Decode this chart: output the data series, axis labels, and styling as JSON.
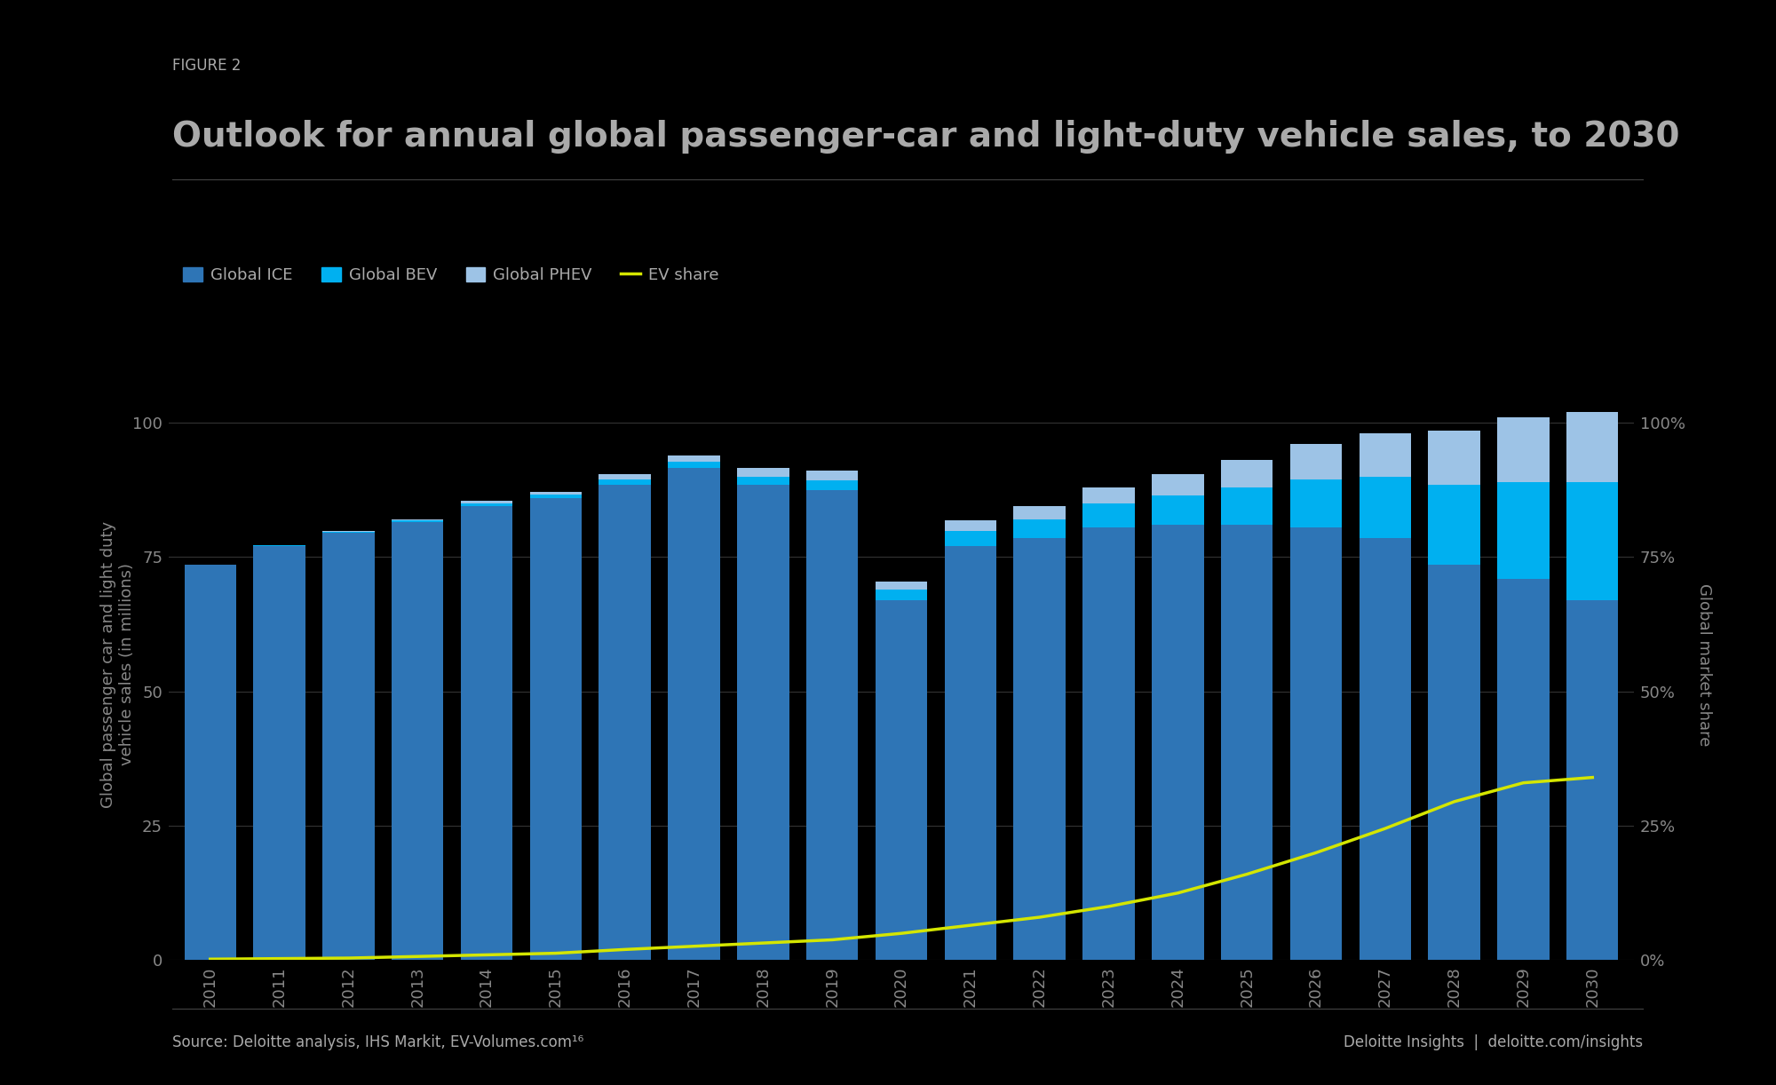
{
  "years": [
    2010,
    2011,
    2012,
    2013,
    2014,
    2015,
    2016,
    2017,
    2018,
    2019,
    2020,
    2021,
    2022,
    2023,
    2024,
    2025,
    2026,
    2027,
    2028,
    2029,
    2030
  ],
  "ice": [
    73.5,
    77.0,
    79.5,
    81.5,
    84.5,
    86.0,
    88.5,
    91.5,
    88.5,
    87.5,
    67.0,
    77.0,
    78.5,
    80.5,
    81.0,
    81.0,
    80.5,
    78.5,
    73.5,
    71.0,
    67.0
  ],
  "bev": [
    0.1,
    0.15,
    0.2,
    0.3,
    0.5,
    0.6,
    1.0,
    1.2,
    1.5,
    1.8,
    2.0,
    2.8,
    3.5,
    4.5,
    5.5,
    7.0,
    9.0,
    11.5,
    15.0,
    18.0,
    22.0
  ],
  "phev": [
    0.05,
    0.1,
    0.15,
    0.25,
    0.4,
    0.6,
    0.9,
    1.2,
    1.5,
    1.8,
    1.5,
    2.0,
    2.5,
    3.0,
    4.0,
    5.0,
    6.5,
    8.0,
    10.0,
    12.0,
    13.0
  ],
  "ev_share": [
    0.2,
    0.3,
    0.4,
    0.7,
    1.0,
    1.3,
    2.0,
    2.6,
    3.2,
    3.8,
    5.0,
    6.5,
    8.0,
    10.0,
    12.5,
    16.0,
    20.0,
    24.5,
    29.5,
    33.0,
    34.0
  ],
  "color_ice": "#2e75b6",
  "color_bev": "#00b0f0",
  "color_phev": "#9dc3e6",
  "color_ev_share": "#d4e600",
  "axes_facecolor": "#000000",
  "figure_facecolor": "#000000",
  "figure_label": "FIGURE 2",
  "title": "Outlook for annual global passenger-car and light-duty vehicle sales, to 2030",
  "ylabel_left": "Global passenger car and light duty\nvehicle sales (in millions)",
  "ylabel_right": "Global market share",
  "legend_labels": [
    "Global ICE",
    "Global BEV",
    "Global PHEV",
    "EV share"
  ],
  "source_text": "Source: Deloitte analysis, IHS Markit, EV-Volumes.com¹⁶",
  "brand_text": "Deloitte Insights  |  deloitte.com/insights",
  "ylim_left": [
    0,
    110
  ],
  "ylim_right": [
    0,
    110
  ],
  "yticks_left": [
    0,
    25,
    50,
    75,
    100
  ],
  "yticks_right": [
    0,
    25,
    50,
    75,
    100
  ],
  "ytick_labels_right": [
    "0%",
    "25%",
    "50%",
    "75%",
    "100%"
  ],
  "text_color": "#aaaaaa",
  "tick_color": "#888888",
  "bar_width": 0.75,
  "grid_color": "#333333",
  "title_fontsize": 28,
  "label_fontsize": 13,
  "tick_fontsize": 13,
  "figure_label_fontsize": 12,
  "source_fontsize": 12
}
